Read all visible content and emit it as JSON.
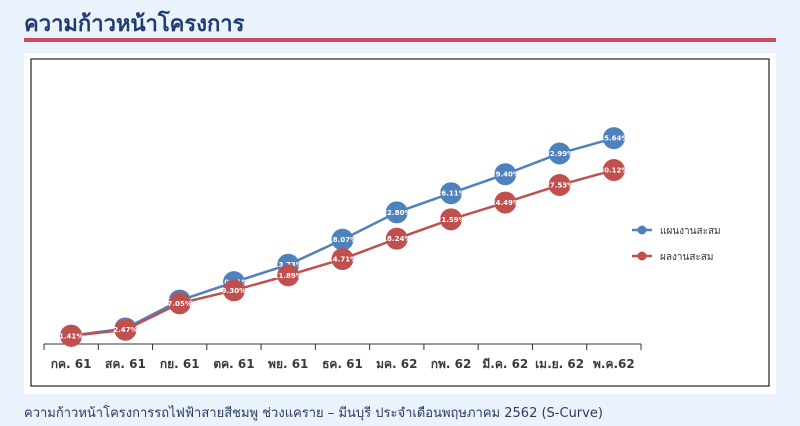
{
  "header": {
    "title": "ความก้าวหน้าโครงการ"
  },
  "caption": "ความก้าวหน้าโครงการรถไฟฟ้าสายสีชมพู ช่วงแคราย – มีนบุรี ประจำเดือนพฤษภาคม 2562 (S-Curve)",
  "chart_data": {
    "type": "line",
    "title": "",
    "xlabel": "",
    "ylabel": "",
    "ylim": [
      0,
      40
    ],
    "grid": false,
    "legend": "right",
    "categories": [
      "กค. 61",
      "สค. 61",
      "กย. 61",
      "ตค. 61",
      "พย. 61",
      "ธค. 61",
      "มค. 62",
      "กพ. 62",
      "มี.ค. 62",
      "เม.ย. 62",
      "พ.ค.62"
    ],
    "series": [
      {
        "name": "แผนงานสะสม",
        "color": "#4f81bd",
        "values": [
          1.46,
          2.69,
          7.52,
          10.71,
          13.73,
          18.07,
          22.8,
          26.11,
          29.4,
          32.99,
          35.64
        ],
        "labels": [
          "1.46%",
          "2.69%",
          "7.52%",
          "10.71%",
          "13.73%",
          "18.07%",
          "22.80%",
          "26.11%",
          "29.40%",
          "32.99%",
          "35.64%"
        ]
      },
      {
        "name": "ผลงานสะสม",
        "color": "#c0504d",
        "values": [
          1.41,
          2.47,
          7.05,
          9.3,
          11.89,
          14.71,
          18.24,
          21.59,
          24.49,
          27.53,
          30.12
        ],
        "labels": [
          "1.41%",
          "2.47%",
          "7.05%",
          "9.30%",
          "11.89%",
          "14.71%",
          "18.24%",
          "21.59%",
          "24.49%",
          "27.53%",
          "30.12%"
        ]
      }
    ]
  }
}
